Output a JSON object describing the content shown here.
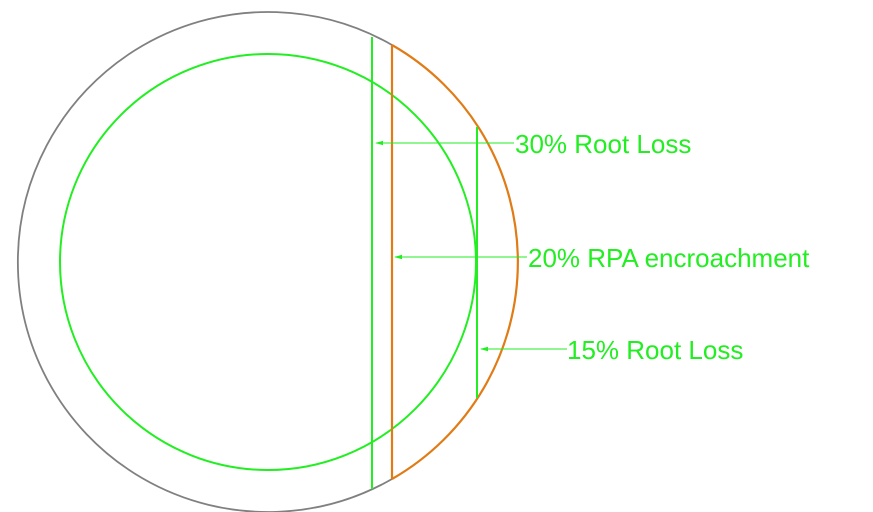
{
  "colors": {
    "background": "#ffffff",
    "outer_circle": "#808080",
    "green": "#22ee22",
    "orange": "#e07b16"
  },
  "labels": {
    "root_loss_30": "30% Root Loss",
    "rpa_encroachment_20": "20% RPA encroachment",
    "root_loss_15": "15% Root Loss"
  }
}
